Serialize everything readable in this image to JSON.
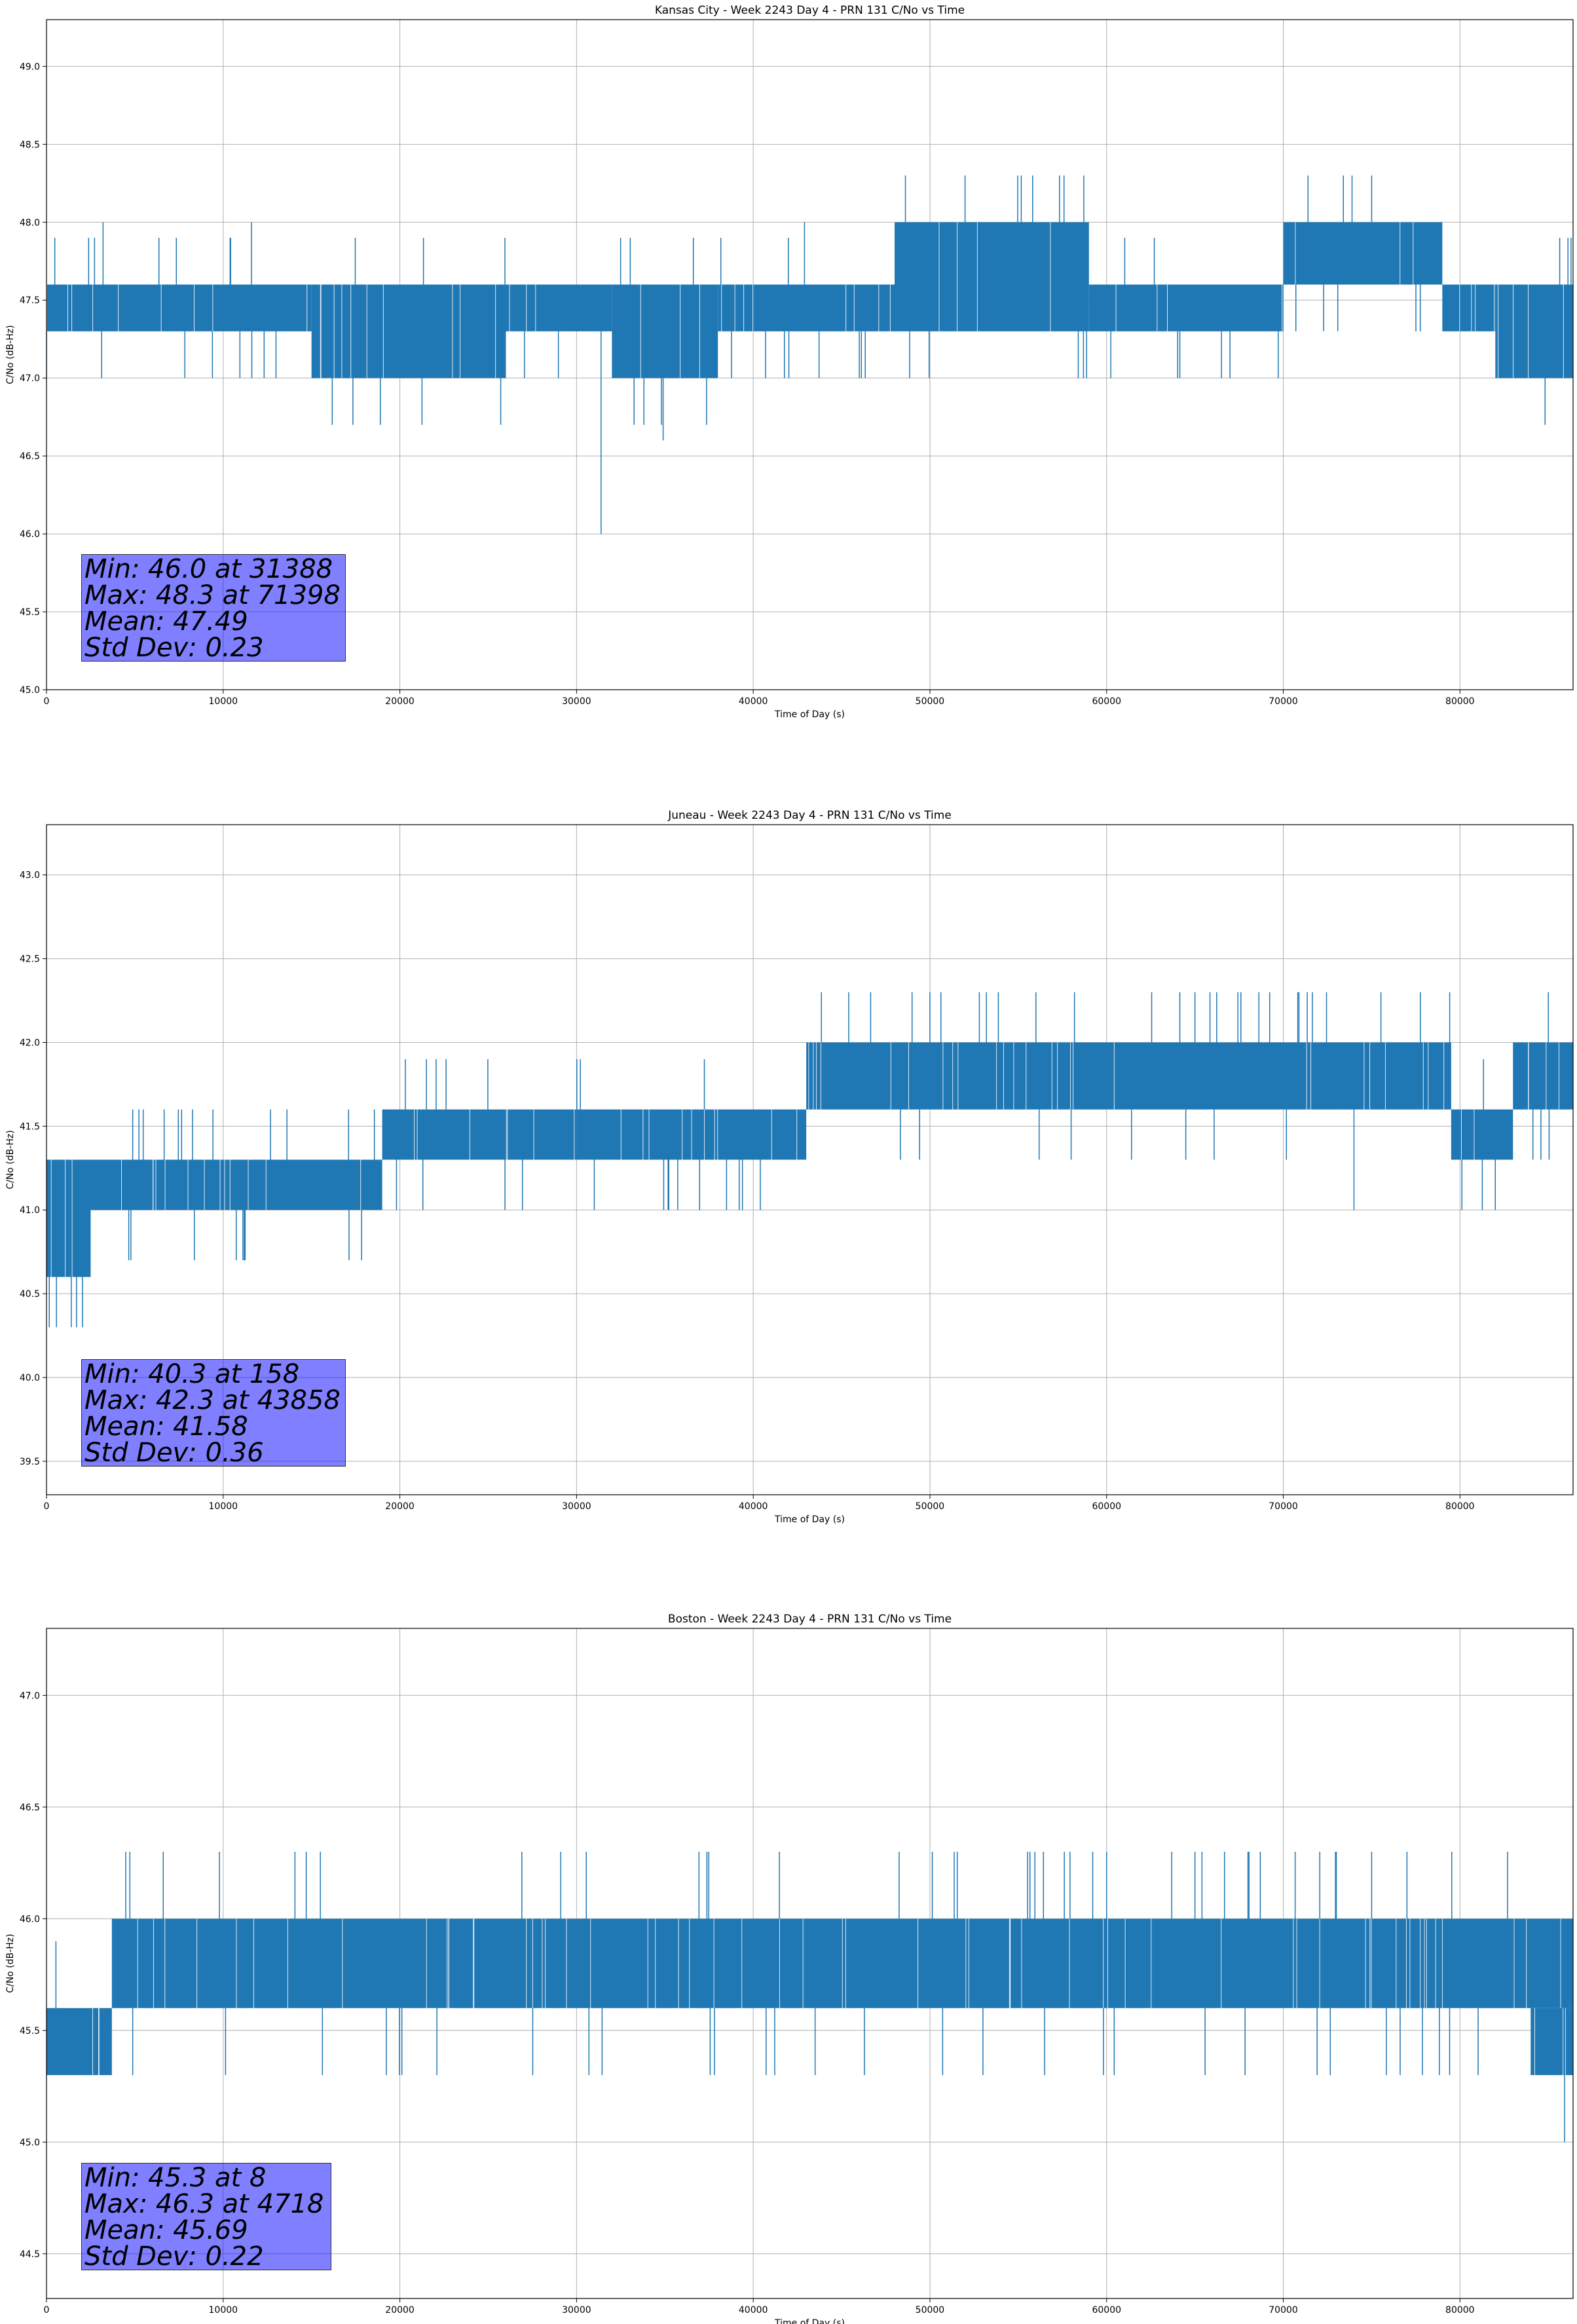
{
  "colors": {
    "series": "#1f77b4",
    "grid": "#b0b0b0",
    "stats_box": "#8080ff"
  },
  "chart_data": [
    {
      "type": "line",
      "title": "Kansas City - Week 2243 Day 4 - PRN 131 C/No vs Time",
      "xlabel": "Time of Day (s)",
      "ylabel": "C/No (dB-Hz)",
      "xlim": [
        0,
        86400
      ],
      "ylim": [
        45.0,
        49.3
      ],
      "xticks": [
        0,
        10000,
        20000,
        30000,
        40000,
        50000,
        60000,
        70000,
        80000
      ],
      "yticks": [
        45.0,
        45.5,
        46.0,
        46.5,
        47.0,
        47.5,
        48.0,
        48.5,
        49.0
      ],
      "grid": true,
      "series": [
        {
          "color": "#1f77b4",
          "segments": [
            {
              "x": [
                0,
                15000
              ],
              "lo": 47.3,
              "hi": 47.6
            },
            {
              "x": [
                15000,
                26000
              ],
              "lo": 47.0,
              "hi": 47.6
            },
            {
              "x": [
                26000,
                32000
              ],
              "lo": 47.3,
              "hi": 47.6
            },
            {
              "x": [
                32000,
                38000
              ],
              "lo": 47.0,
              "hi": 47.6
            },
            {
              "x": [
                38000,
                48000
              ],
              "lo": 47.3,
              "hi": 47.6
            },
            {
              "x": [
                48000,
                59000
              ],
              "lo": 47.3,
              "hi": 48.0
            },
            {
              "x": [
                59000,
                70000
              ],
              "lo": 47.3,
              "hi": 47.6
            },
            {
              "x": [
                70000,
                79000
              ],
              "lo": 47.6,
              "hi": 48.0
            },
            {
              "x": [
                79000,
                82000
              ],
              "lo": 47.3,
              "hi": 47.6
            },
            {
              "x": [
                82000,
                86400
              ],
              "lo": 47.0,
              "hi": 47.6
            }
          ],
          "spikes": [
            {
              "x": 3200,
              "y": 48.0
            },
            {
              "x": 11600,
              "y": 48.0
            },
            {
              "x": 31388,
              "y": 46.0
            },
            {
              "x": 34900,
              "y": 46.6
            },
            {
              "x": 71398,
              "y": 48.3
            },
            {
              "x": 73400,
              "y": 48.3
            },
            {
              "x": 75000,
              "y": 48.3
            },
            {
              "x": 42900,
              "y": 48.0
            },
            {
              "x": 66500,
              "y": 47.0
            }
          ]
        }
      ],
      "stats": [
        "Min: 46.0 at 31388",
        "Max: 48.3 at 71398",
        "Mean: 47.49",
        "Std Dev: 0.23"
      ]
    },
    {
      "type": "line",
      "title": "Juneau - Week 2243 Day 4 - PRN 131 C/No vs Time",
      "xlabel": "Time of Day (s)",
      "ylabel": "C/No (dB-Hz)",
      "xlim": [
        0,
        86400
      ],
      "ylim": [
        39.3,
        43.3
      ],
      "xticks": [
        0,
        10000,
        20000,
        30000,
        40000,
        50000,
        60000,
        70000,
        80000
      ],
      "yticks": [
        39.5,
        40.0,
        40.5,
        41.0,
        41.5,
        42.0,
        42.5,
        43.0
      ],
      "grid": true,
      "series": [
        {
          "color": "#1f77b4",
          "segments": [
            {
              "x": [
                0,
                2500
              ],
              "lo": 40.6,
              "hi": 41.3
            },
            {
              "x": [
                2500,
                19000
              ],
              "lo": 41.0,
              "hi": 41.3
            },
            {
              "x": [
                19000,
                30000
              ],
              "lo": 41.3,
              "hi": 41.6
            },
            {
              "x": [
                30000,
                43000
              ],
              "lo": 41.3,
              "hi": 41.6
            },
            {
              "x": [
                43000,
                73000
              ],
              "lo": 41.6,
              "hi": 42.0
            },
            {
              "x": [
                73000,
                79500
              ],
              "lo": 41.6,
              "hi": 42.0
            },
            {
              "x": [
                79500,
                83000
              ],
              "lo": 41.3,
              "hi": 41.6
            },
            {
              "x": [
                83000,
                86400
              ],
              "lo": 41.6,
              "hi": 42.0
            }
          ],
          "spikes": [
            {
              "x": 158,
              "y": 40.3
            },
            {
              "x": 1400,
              "y": 40.3
            },
            {
              "x": 1700,
              "y": 40.3
            },
            {
              "x": 43858,
              "y": 42.3
            },
            {
              "x": 50000,
              "y": 42.3
            },
            {
              "x": 65000,
              "y": 42.3
            },
            {
              "x": 85000,
              "y": 42.3
            },
            {
              "x": 74000,
              "y": 41.0
            },
            {
              "x": 82000,
              "y": 41.0
            }
          ]
        }
      ],
      "stats": [
        "Min: 40.3 at 158",
        "Max: 42.3 at 43858",
        "Mean: 41.58",
        "Std Dev: 0.36"
      ]
    },
    {
      "type": "line",
      "title": "Boston - Week 2243 Day 4 - PRN 131 C/No vs Time",
      "xlabel": "Time of Day (s)",
      "ylabel": "C/No (dB-Hz)",
      "xlim": [
        0,
        86400
      ],
      "ylim": [
        44.3,
        47.3
      ],
      "xticks": [
        0,
        10000,
        20000,
        30000,
        40000,
        50000,
        60000,
        70000,
        80000
      ],
      "yticks": [
        44.5,
        45.0,
        45.5,
        46.0,
        46.5,
        47.0
      ],
      "grid": true,
      "series": [
        {
          "color": "#1f77b4",
          "segments": [
            {
              "x": [
                0,
                3700
              ],
              "lo": 45.3,
              "hi": 45.6
            },
            {
              "x": [
                3700,
                86400
              ],
              "lo": 45.6,
              "hi": 46.0
            },
            {
              "x": [
                84000,
                86400
              ],
              "lo": 45.3,
              "hi": 45.6
            }
          ],
          "spikes": [
            {
              "x": 4718,
              "y": 46.3
            },
            {
              "x": 14700,
              "y": 46.3
            },
            {
              "x": 15500,
              "y": 46.3
            },
            {
              "x": 65000,
              "y": 46.3
            },
            {
              "x": 68000,
              "y": 46.3
            },
            {
              "x": 73000,
              "y": 46.3
            },
            {
              "x": 75000,
              "y": 46.3
            },
            {
              "x": 77000,
              "y": 46.3
            }
          ]
        }
      ],
      "stats": [
        "Min: 45.3 at 8",
        "Max: 46.3 at 4718",
        "Mean: 45.69",
        "Std Dev: 0.22"
      ]
    }
  ]
}
